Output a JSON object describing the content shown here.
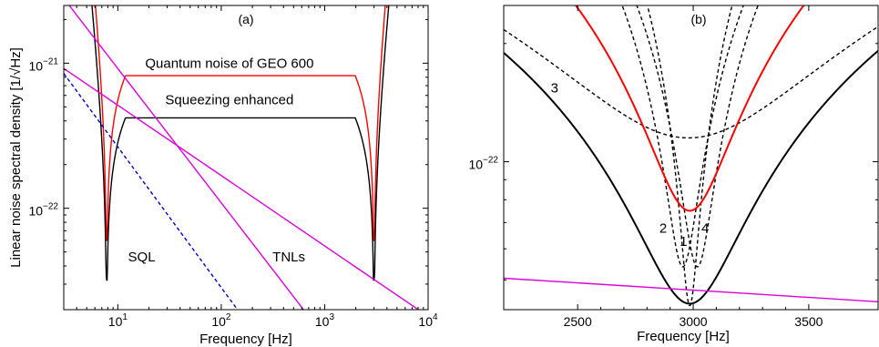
{
  "chart_data": [
    {
      "panel": "(a)",
      "type": "line",
      "xscale": "log",
      "yscale": "log",
      "xlim": [
        3,
        10000
      ],
      "ylim": [
        2e-23,
        2.5e-21
      ],
      "xlabel": "Frequency  [Hz]",
      "ylabel": "Linear noise spectral density  [1/√Hz]",
      "xticks": [
        {
          "value": 10,
          "base": "10",
          "exp": "1"
        },
        {
          "value": 100,
          "base": "10",
          "exp": "2"
        },
        {
          "value": 1000,
          "base": "10",
          "exp": "3"
        },
        {
          "value": 10000,
          "base": "10",
          "exp": "4"
        }
      ],
      "yticks": [
        {
          "value": 1e-22,
          "base": "10",
          "exp": "−22"
        },
        {
          "value": 1e-21,
          "base": "10",
          "exp": "−21"
        }
      ],
      "annotations": [
        {
          "text": "Quantum noise of GEO 600",
          "x": 120,
          "y": 9.3e-22
        },
        {
          "text": "Squeezing enhanced",
          "x": 120,
          "y": 5.2e-22
        },
        {
          "text": "SQL",
          "x": 17,
          "y": 4.3e-23
        },
        {
          "text": "TNLs",
          "x": 450,
          "y": 4.3e-23
        }
      ],
      "series": [
        {
          "type": "quantum",
          "color": "#ff0000",
          "level": 8.2e-22,
          "f1": 7.8,
          "f2": 3000,
          "floor": 6e-23
        },
        {
          "type": "quantum",
          "color": "#000000",
          "level": 4.2e-22,
          "f1": 7.8,
          "f2": 3000,
          "floor": 3.2e-23
        },
        {
          "type": "line",
          "color": "#0000cc",
          "dashed": true,
          "points": [
            [
              3,
              8.5e-22
            ],
            [
              160,
              1.8e-23
            ]
          ]
        },
        {
          "type": "line",
          "color": "#dd00dd",
          "points": [
            [
              3,
              2.8e-21
            ],
            [
              700,
              1.8e-23
            ]
          ]
        },
        {
          "type": "line",
          "color": "#dd00dd",
          "points": [
            [
              3,
              9.2e-22
            ],
            [
              10000,
              1.8e-23
            ]
          ]
        }
      ]
    },
    {
      "panel": "(b)",
      "type": "line",
      "xscale": "linear",
      "yscale": "log",
      "xlim": [
        2180,
        3800
      ],
      "ylim": [
        4.2e-23,
        2.5e-22
      ],
      "xlabel": "Frequency  [Hz]",
      "xticks": [
        {
          "value": 2500,
          "label": "2500"
        },
        {
          "value": 3000,
          "label": "3000"
        },
        {
          "value": 3500,
          "label": "3500"
        }
      ],
      "yticks": [
        {
          "value": 1e-22,
          "base": "10",
          "exp": "−22"
        }
      ],
      "annotations": [
        {
          "text": "3",
          "x": 2400,
          "y": 1.5e-22
        },
        {
          "text": "2",
          "x": 2870,
          "y": 6.6e-23
        },
        {
          "text": "1",
          "x": 2958,
          "y": 6.1e-23
        },
        {
          "text": "4",
          "x": 3052,
          "y": 6.6e-23
        }
      ],
      "series": [
        {
          "name": "1",
          "type": "dip",
          "color": "#000000",
          "dashed": true,
          "f0": 2985,
          "min": 4.3e-23,
          "w": 32
        },
        {
          "name": "2",
          "type": "dip",
          "color": "#000000",
          "dashed": true,
          "f0": 2955,
          "min": 5.4e-23,
          "w": 58
        },
        {
          "name": "4",
          "type": "dip",
          "color": "#000000",
          "dashed": true,
          "f0": 3018,
          "min": 5.4e-23,
          "w": 58
        },
        {
          "name": "3",
          "type": "dip",
          "color": "#000000",
          "dashed": true,
          "f0": 2980,
          "min": 1.15e-22,
          "w": 500
        },
        {
          "type": "dip",
          "color": "#ff0000",
          "f0": 2985,
          "min": 7.5e-23,
          "w": 155,
          "width": 2
        },
        {
          "type": "dip",
          "color": "#000000",
          "f0": 2985,
          "min": 4.35e-23,
          "w": 190,
          "width": 2
        },
        {
          "type": "line",
          "color": "#dd00dd",
          "points": [
            [
              2180,
              5.05e-23
            ],
            [
              3800,
              4.4e-23
            ]
          ]
        }
      ]
    }
  ]
}
